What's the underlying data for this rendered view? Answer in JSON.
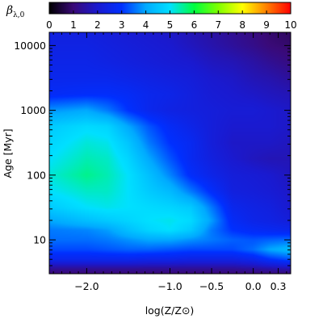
{
  "chart_data": {
    "type": "heatmap",
    "title": "",
    "xlabel": "log(Z/Z⊙)",
    "ylabel": "Age [Myr]",
    "xlim": [
      -2.45,
      0.45
    ],
    "ylim": [
      3.0,
      16000
    ],
    "yscale": "log",
    "x_ticks": [
      {
        "value": -2.0,
        "label": "−2.0"
      },
      {
        "value": -1.0,
        "label": "−1.0"
      },
      {
        "value": -0.5,
        "label": "−0.5"
      },
      {
        "value": 0.0,
        "label": "0.0"
      },
      {
        "value": 0.3,
        "label": "0.3"
      }
    ],
    "y_ticks": [
      {
        "value": 10,
        "label": "10"
      },
      {
        "value": 100,
        "label": "100"
      },
      {
        "value": 1000,
        "label": "1000"
      },
      {
        "value": 10000,
        "label": "10000"
      }
    ],
    "colorbar": {
      "title": "β",
      "title_subscript": "λ,0",
      "range": [
        0,
        10
      ],
      "tick_labels": [
        "0",
        "1",
        "2",
        "3",
        "4",
        "5",
        "6",
        "7",
        "8",
        "9",
        "10"
      ],
      "colormap": [
        "#000000",
        "#3a0a78",
        "#1a1ad0",
        "#0030ff",
        "#00aaff",
        "#00e0ff",
        "#00ff40",
        "#80ff00",
        "#ffff00",
        "#ff8000",
        "#ff0000"
      ]
    },
    "grid": false,
    "x_nodes": [
      -2.45,
      -2.0,
      -1.75,
      -1.5,
      -1.25,
      -1.0,
      -0.75,
      -0.5,
      -0.25,
      0.0,
      0.2,
      0.45
    ],
    "log_age_nodes": [
      0.477,
      0.55,
      0.7,
      0.85,
      1.0,
      1.15,
      1.3,
      1.5,
      1.75,
      2.0,
      2.25,
      2.5,
      2.75,
      3.0,
      3.25,
      3.5,
      3.75,
      4.0,
      4.2
    ],
    "beta_grid": [
      [
        1.0,
        1.0,
        1.0,
        1.0,
        1.0,
        1.0,
        1.0,
        1.0,
        1.0,
        1.0,
        1.0,
        1.0
      ],
      [
        1.3,
        1.3,
        1.3,
        1.3,
        1.3,
        1.3,
        1.3,
        1.3,
        1.3,
        1.4,
        1.5,
        1.6
      ],
      [
        2.6,
        2.6,
        2.6,
        2.6,
        2.5,
        2.5,
        2.4,
        2.4,
        2.4,
        2.6,
        3.0,
        3.3
      ],
      [
        3.2,
        3.2,
        3.3,
        3.4,
        3.4,
        3.3,
        3.2,
        3.2,
        3.2,
        3.5,
        4.0,
        4.3
      ],
      [
        3.5,
        3.5,
        3.6,
        3.8,
        4.0,
        4.0,
        3.8,
        3.6,
        3.4,
        3.3,
        3.4,
        3.5
      ],
      [
        3.6,
        3.7,
        3.9,
        4.4,
        4.8,
        5.0,
        4.6,
        3.6,
        3.0,
        2.8,
        2.7,
        2.6
      ],
      [
        4.0,
        4.4,
        4.6,
        4.8,
        5.0,
        5.1,
        4.9,
        3.9,
        2.8,
        2.5,
        2.4,
        2.2
      ],
      [
        4.6,
        5.0,
        5.1,
        5.0,
        4.9,
        4.8,
        4.6,
        3.6,
        2.6,
        2.4,
        2.3,
        2.0
      ],
      [
        5.0,
        5.3,
        5.3,
        5.0,
        4.6,
        4.3,
        3.6,
        2.9,
        2.3,
        2.2,
        2.1,
        1.9
      ],
      [
        5.2,
        5.6,
        5.4,
        5.0,
        4.4,
        3.7,
        2.9,
        2.5,
        2.2,
        2.1,
        2.0,
        1.8
      ],
      [
        5.0,
        5.4,
        5.3,
        4.8,
        4.0,
        3.3,
        2.7,
        2.3,
        2.0,
        1.8,
        1.7,
        1.7
      ],
      [
        4.8,
        5.2,
        5.1,
        4.5,
        3.6,
        3.0,
        2.7,
        2.2,
        1.9,
        1.9,
        1.9,
        1.8
      ],
      [
        4.6,
        4.9,
        4.8,
        4.0,
        3.3,
        2.8,
        2.5,
        2.2,
        2.0,
        2.0,
        2.0,
        1.9
      ],
      [
        3.8,
        4.0,
        3.6,
        3.0,
        2.6,
        2.4,
        2.3,
        2.2,
        2.1,
        2.1,
        2.0,
        1.9
      ],
      [
        2.8,
        2.9,
        2.9,
        2.8,
        2.6,
        2.5,
        2.3,
        2.1,
        2.0,
        1.9,
        1.8,
        1.7
      ],
      [
        2.6,
        2.6,
        2.6,
        2.5,
        2.4,
        2.3,
        2.2,
        2.0,
        1.9,
        1.7,
        1.6,
        1.4
      ],
      [
        2.5,
        2.5,
        2.4,
        2.3,
        2.2,
        2.1,
        2.0,
        1.8,
        1.7,
        1.5,
        1.3,
        1.1
      ],
      [
        2.4,
        2.4,
        2.3,
        2.2,
        2.1,
        2.0,
        1.8,
        1.6,
        1.4,
        1.2,
        1.0,
        0.9
      ],
      [
        2.3,
        2.3,
        2.2,
        2.1,
        2.0,
        1.9,
        1.7,
        1.5,
        1.3,
        1.1,
        0.9,
        0.8
      ]
    ]
  }
}
